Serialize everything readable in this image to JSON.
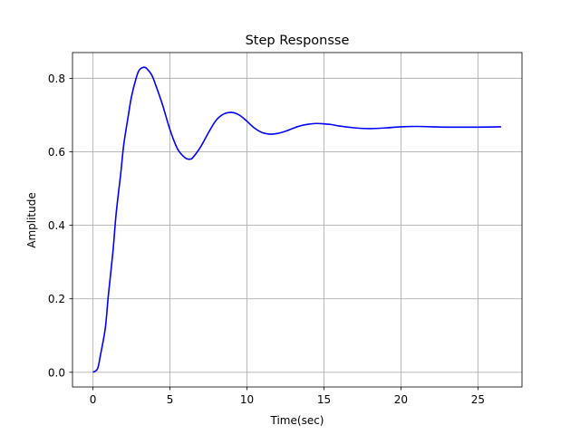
{
  "chart_data": {
    "type": "line",
    "title": "Step Responsse",
    "xlabel": "Time(sec)",
    "ylabel": "Amplitude",
    "xlim": [
      -1.33,
      27.86
    ],
    "ylim": [
      -0.04,
      0.87
    ],
    "xticks": [
      0,
      5,
      10,
      15,
      20,
      25
    ],
    "xtick_labels": [
      "0",
      "5",
      "10",
      "15",
      "20",
      "25"
    ],
    "yticks": [
      0.0,
      0.2,
      0.4,
      0.6,
      0.8
    ],
    "ytick_labels": [
      "0.0",
      "0.2",
      "0.4",
      "0.6",
      "0.8"
    ],
    "grid": true,
    "series": [
      {
        "color": "#0000ff",
        "x": [
          0,
          0.3,
          0.5,
          0.8,
          1.0,
          1.3,
          1.5,
          1.8,
          2.0,
          2.3,
          2.5,
          2.8,
          3.0,
          3.3,
          3.5,
          3.8,
          4.0,
          4.5,
          5.0,
          5.5,
          6.0,
          6.3,
          6.5,
          7.0,
          7.5,
          8.0,
          8.5,
          9.0,
          9.5,
          10.0,
          10.5,
          11.0,
          11.5,
          12.0,
          12.5,
          13.0,
          13.5,
          14.0,
          14.5,
          15.0,
          15.5,
          16.0,
          17.0,
          18.0,
          19.0,
          20.0,
          21.0,
          22.0,
          23.0,
          24.0,
          25.0,
          26.5
        ],
        "y": [
          0.0,
          0.01,
          0.05,
          0.12,
          0.21,
          0.33,
          0.43,
          0.54,
          0.62,
          0.7,
          0.75,
          0.8,
          0.822,
          0.83,
          0.826,
          0.81,
          0.79,
          0.73,
          0.66,
          0.607,
          0.583,
          0.58,
          0.585,
          0.614,
          0.652,
          0.686,
          0.703,
          0.707,
          0.7,
          0.683,
          0.664,
          0.652,
          0.648,
          0.65,
          0.656,
          0.664,
          0.671,
          0.675,
          0.677,
          0.676,
          0.674,
          0.67,
          0.665,
          0.663,
          0.665,
          0.668,
          0.669,
          0.668,
          0.667,
          0.667,
          0.667,
          0.668
        ]
      }
    ]
  }
}
